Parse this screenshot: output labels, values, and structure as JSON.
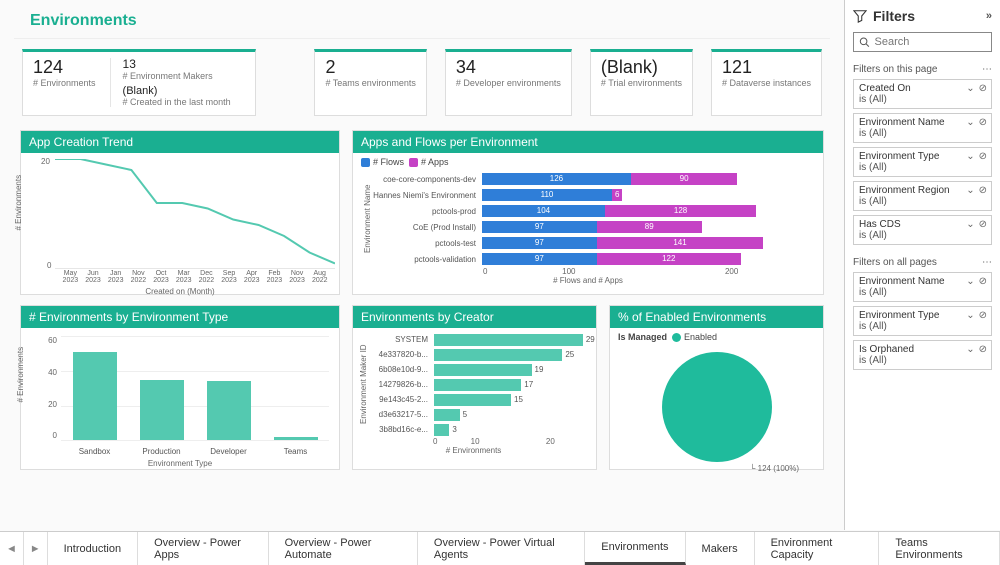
{
  "colors": {
    "teal": "#1aaf91",
    "tealLight": "#54c9b0",
    "blue": "#2f7ed8",
    "magenta": "#c542c5",
    "grid": "#eeeeee",
    "text": "#333333"
  },
  "page": {
    "title": "Environments"
  },
  "kpis": {
    "environments": {
      "value": "124",
      "label": "# Environments"
    },
    "makers": {
      "value": "13",
      "label": "# Environment Makers"
    },
    "created": {
      "value": "(Blank)",
      "label": "# Created in the last month"
    },
    "teams": {
      "value": "2",
      "label": "# Teams environments"
    },
    "developer": {
      "value": "34",
      "label": "# Developer environments"
    },
    "trial": {
      "value": "(Blank)",
      "label": "# Trial environments"
    },
    "dataverse": {
      "value": "121",
      "label": "# Dataverse instances"
    }
  },
  "trend": {
    "title": "App Creation Trend",
    "yAxis": "# Environments",
    "xAxis": "Created on (Month)",
    "yMax": 20,
    "categories": [
      "May 2023",
      "Jun 2023",
      "Jan 2023",
      "Nov 2022",
      "Oct 2023",
      "Mar 2023",
      "Dec 2022",
      "Sep 2023",
      "Apr 2023",
      "Feb 2023",
      "Nov 2023",
      "Aug 2022"
    ],
    "values": [
      20,
      20,
      19,
      18,
      12,
      12,
      11,
      9,
      8,
      6,
      3,
      1
    ],
    "lineColor": "#54c9b0"
  },
  "appsFlows": {
    "title": "Apps and Flows per Environment",
    "legend": {
      "flows": "# Flows",
      "apps": "# Apps"
    },
    "yAxis": "Environment Name",
    "xAxis": "# Flows and # Apps",
    "xTicks": [
      "0",
      "100",
      "200"
    ],
    "xMax": 280,
    "rows": [
      {
        "name": "coe-core-components-dev",
        "flows": 126,
        "apps": 90
      },
      {
        "name": "Hannes Niemi's Environment",
        "flows": 110,
        "apps": 6,
        "appsOutside": true
      },
      {
        "name": "pctools-prod",
        "flows": 104,
        "apps": 128
      },
      {
        "name": "CoE (Prod Install)",
        "flows": 97,
        "apps": 89
      },
      {
        "name": "pctools-test",
        "flows": 97,
        "apps": 141
      },
      {
        "name": "pctools-validation",
        "flows": 97,
        "apps": 122
      }
    ],
    "flowsColor": "#2f7ed8",
    "appsColor": "#c542c5"
  },
  "byType": {
    "title": "# Environments by Environment Type",
    "yAxis": "# Environments",
    "xAxis": "Environment Type",
    "yMax": 60,
    "yTicks": [
      "60",
      "40",
      "20",
      "0"
    ],
    "bars": [
      {
        "name": "Sandbox",
        "value": 51
      },
      {
        "name": "Production",
        "value": 35
      },
      {
        "name": "Developer",
        "value": 34
      },
      {
        "name": "Teams",
        "value": 2
      }
    ],
    "barColor": "#54c9b0"
  },
  "byCreator": {
    "title": "Environments by Creator",
    "yAxis": "Environment Maker ID",
    "xAxis": "# Environments",
    "xMax": 30,
    "xTicks": [
      "0",
      "10",
      "20"
    ],
    "rows": [
      {
        "name": "SYSTEM",
        "value": 29
      },
      {
        "name": "4e337820-b...",
        "value": 25
      },
      {
        "name": "6b08e10d-9...",
        "value": 19
      },
      {
        "name": "14279826-b...",
        "value": 17
      },
      {
        "name": "9e143c45-2...",
        "value": 15
      },
      {
        "name": "d3e63217-5...",
        "value": 5
      },
      {
        "name": "3b8bd16c-e...",
        "value": 3
      }
    ],
    "barColor": "#54c9b0"
  },
  "enabled": {
    "title": "% of Enabled Environments",
    "legendLabel": "Is Managed",
    "legendItem": "Enabled",
    "count": "124 (100%)",
    "color": "#1fbb9c"
  },
  "filters": {
    "paneTitle": "Filters",
    "searchPlaceholder": "Search",
    "thisPageLabel": "Filters on this page",
    "allPagesLabel": "Filters on all pages",
    "thisPage": [
      {
        "name": "Created On",
        "state": "is (All)"
      },
      {
        "name": "Environment Name",
        "state": "is (All)"
      },
      {
        "name": "Environment Type",
        "state": "is (All)"
      },
      {
        "name": "Environment Region",
        "state": "is (All)"
      },
      {
        "name": "Has CDS",
        "state": "is (All)"
      }
    ],
    "allPages": [
      {
        "name": "Environment Name",
        "state": "is (All)"
      },
      {
        "name": "Environment Type",
        "state": "is (All)"
      },
      {
        "name": "Is Orphaned",
        "state": "is (All)"
      }
    ]
  },
  "tabs": {
    "items": [
      "Introduction",
      "Overview - Power Apps",
      "Overview - Power Automate",
      "Overview - Power Virtual Agents",
      "Environments",
      "Makers",
      "Environment Capacity",
      "Teams Environments"
    ],
    "activeIndex": 4
  }
}
